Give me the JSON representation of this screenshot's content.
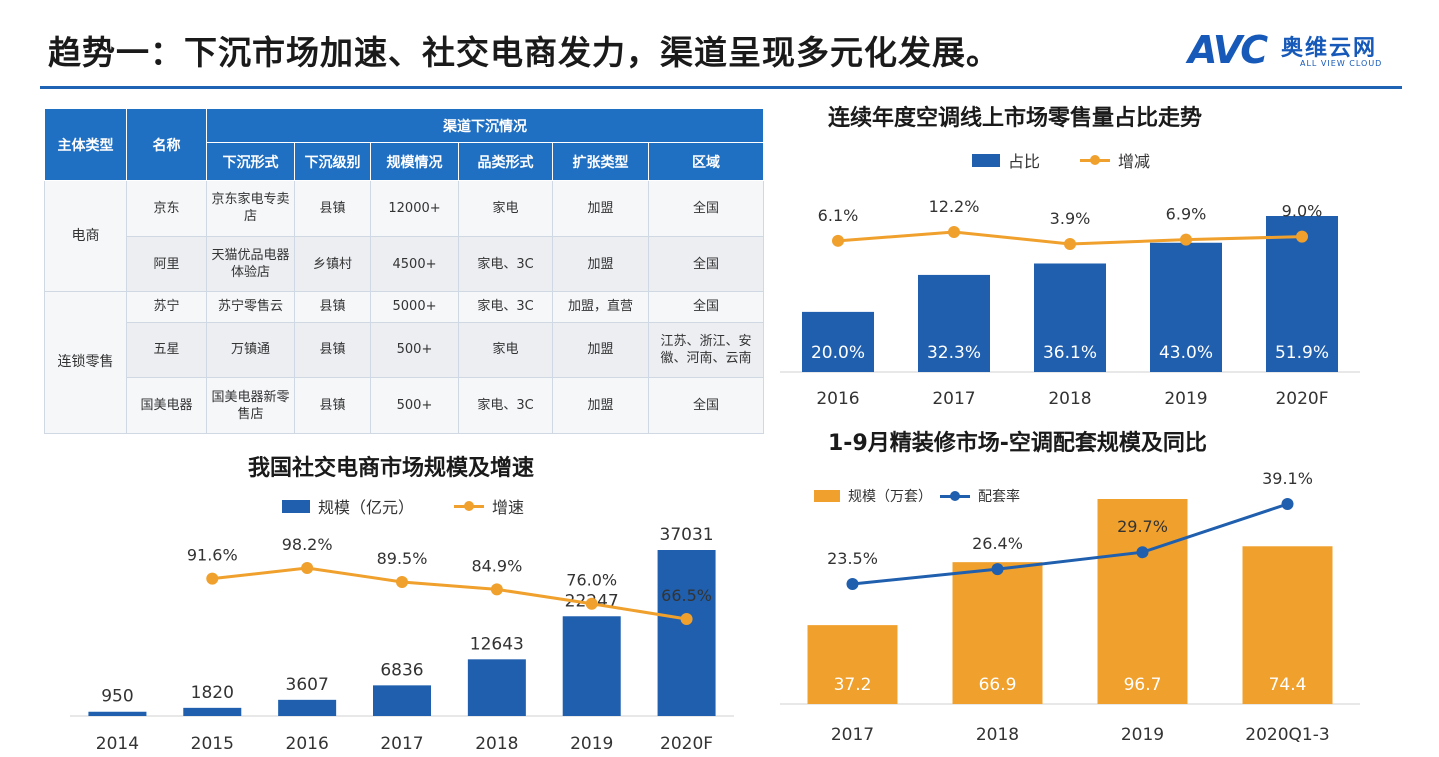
{
  "page": {
    "title": "趋势一：下沉市场加速、社交电商发力，渠道呈现多元化发展。",
    "logo_mark": "AVC",
    "logo_cn": "奥维云网",
    "logo_en": "ALL VIEW CLOUD"
  },
  "table": {
    "header_group": "渠道下沉情况",
    "col_type": "主体类型",
    "col_name": "名称",
    "sub_headers": [
      "下沉形式",
      "下沉级别",
      "规模情况",
      "品类形式",
      "扩张类型",
      "区域"
    ],
    "groups": [
      {
        "type": "电商",
        "rows": [
          {
            "name": "京东",
            "form": "京东家电专卖店",
            "level": "县镇",
            "scale": "12000+",
            "category": "家电",
            "expand": "加盟",
            "region": "全国"
          },
          {
            "name": "阿里",
            "form": "天猫优品电器体验店",
            "level": "乡镇村",
            "scale": "4500+",
            "category": "家电、3C",
            "expand": "加盟",
            "region": "全国"
          }
        ]
      },
      {
        "type": "连锁零售",
        "rows": [
          {
            "name": "苏宁",
            "form": "苏宁零售云",
            "level": "县镇",
            "scale": "5000+",
            "category": "家电、3C",
            "expand": "加盟，直营",
            "region": "全国"
          },
          {
            "name": "五星",
            "form": "万镇通",
            "level": "县镇",
            "scale": "500+",
            "category": "家电",
            "expand": "加盟",
            "region": "江苏、浙江、安徽、河南、云南"
          },
          {
            "name": "国美电器",
            "form": "国美电器新零售店",
            "level": "县镇",
            "scale": "500+",
            "category": "家电、3C",
            "expand": "加盟",
            "region": "全国"
          }
        ]
      }
    ]
  },
  "chart_data": [
    {
      "type": "bar",
      "title": "连续年度空调线上市场零售量占比走势",
      "categories": [
        "2016",
        "2017",
        "2018",
        "2019",
        "2020F"
      ],
      "series": [
        {
          "name": "占比",
          "kind": "bar",
          "values": [
            20.0,
            32.3,
            36.1,
            43.0,
            51.9
          ],
          "labels": [
            "20.0%",
            "32.3%",
            "36.1%",
            "43.0%",
            "51.9%"
          ],
          "color": "#1f5fae"
        },
        {
          "name": "增减",
          "kind": "line",
          "values": [
            6.1,
            12.2,
            3.9,
            6.9,
            9.0
          ],
          "labels": [
            "6.1%",
            "12.2%",
            "3.9%",
            "6.9%",
            "9.0%"
          ],
          "color": "#f0a02c"
        }
      ],
      "xlabel": "",
      "ylabel": "",
      "grid": false,
      "legend": "top"
    },
    {
      "type": "bar",
      "title": "我国社交电商市场规模及增速",
      "categories": [
        "2014",
        "2015",
        "2016",
        "2017",
        "2018",
        "2019",
        "2020F"
      ],
      "series": [
        {
          "name": "规模（亿元）",
          "kind": "bar",
          "values": [
            950,
            1820,
            3607,
            6836,
            12643,
            22247,
            37031
          ],
          "labels": [
            "950",
            "1820",
            "3607",
            "6836",
            "12643",
            "22247",
            "37031"
          ],
          "color": "#1f5fae"
        },
        {
          "name": "增速",
          "kind": "line",
          "values": [
            null,
            91.6,
            98.2,
            89.5,
            84.9,
            76.0,
            66.5
          ],
          "labels": [
            "",
            "91.6%",
            "98.2%",
            "89.5%",
            "84.9%",
            "76.0%",
            "66.5%"
          ],
          "color": "#f0a02c"
        }
      ],
      "xlabel": "",
      "ylabel": "",
      "grid": false,
      "legend": "top"
    },
    {
      "type": "bar",
      "title": "1-9月精装修市场-空调配套规模及同比",
      "categories": [
        "2017",
        "2018",
        "2019",
        "2020Q1-3"
      ],
      "series": [
        {
          "name": "规模（万套）",
          "kind": "bar",
          "values": [
            37.2,
            66.9,
            96.7,
            74.4
          ],
          "labels": [
            "37.2",
            "66.9",
            "96.7",
            "74.4"
          ],
          "color": "#f0a02c"
        },
        {
          "name": "配套率",
          "kind": "line",
          "values": [
            23.5,
            26.4,
            29.7,
            39.1
          ],
          "labels": [
            "23.5%",
            "26.4%",
            "29.7%",
            "39.1%"
          ],
          "color": "#1f5fae"
        }
      ],
      "xlabel": "",
      "ylabel": "",
      "grid": false,
      "legend": "top"
    }
  ]
}
